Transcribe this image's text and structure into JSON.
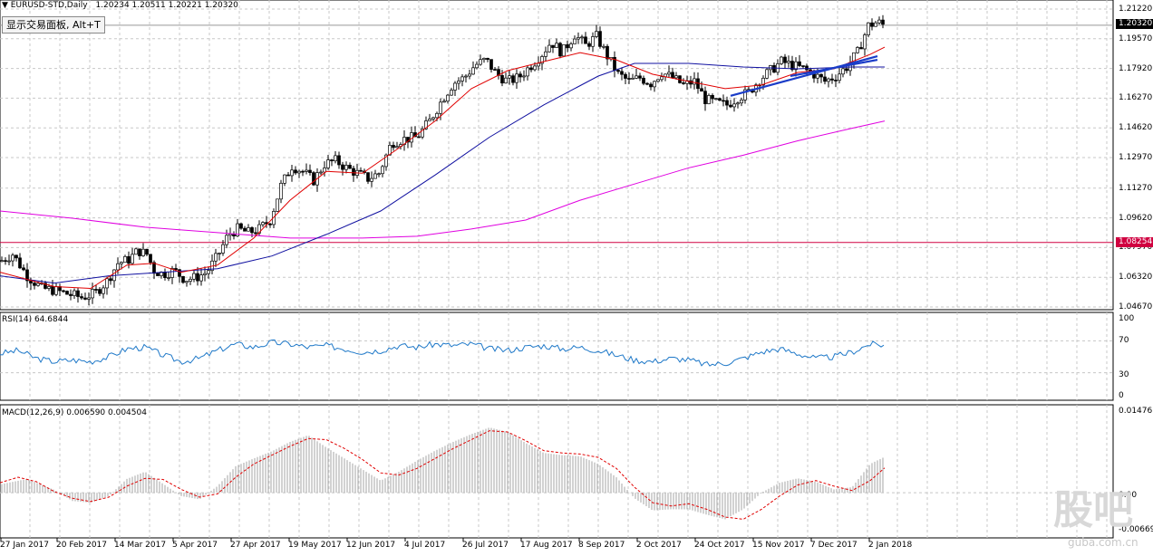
{
  "window": {
    "symbol_title": "EURUSD-STD,Daily",
    "ohlc": "1.20234 1.20511 1.20221 1.20320"
  },
  "tooltip": {
    "label": "显示交易面板, Alt+T"
  },
  "price_axis": {
    "labels": [
      "1.21220",
      "1.19570",
      "1.17920",
      "1.16270",
      "1.14620",
      "1.12970",
      "1.11270",
      "1.09620",
      "1.07970",
      "1.06320",
      "1.04670"
    ],
    "current_price": "1.20320",
    "hline_price": "1.08254"
  },
  "rsi": {
    "title": "RSI(14) 64.6844",
    "levels": [
      "100",
      "70",
      "30",
      "0"
    ]
  },
  "macd": {
    "title": "MACD(12,26,9) 0.006590 0.004504",
    "levels": [
      "0.01476",
      "0.00",
      "-0.006692"
    ]
  },
  "time_axis": {
    "labels": [
      "27 Jan 2017",
      "20 Feb 2017",
      "14 Mar 2017",
      "5 Apr 2017",
      "27 Apr 2017",
      "19 May 2017",
      "12 Jun 2017",
      "4 Jul 2017",
      "26 Jul 2017",
      "17 Aug 2017",
      "8 Sep 2017",
      "2 Oct 2017",
      "24 Oct 2017",
      "15 Nov 2017",
      "7 Dec 2017",
      "2 Jan 2018"
    ]
  },
  "watermark": {
    "text": "股吧",
    "sub": "guba.com.cn"
  },
  "colors": {
    "ma_fast": "#e00000",
    "ma_mid": "#1010a0",
    "ma_slow": "#e000e0",
    "rsi": "#1e78c8",
    "macd_signal": "#e00000",
    "trend": "#1a3cc8",
    "hline": "#d00040"
  },
  "chart_data": [
    {
      "type": "candlestick",
      "title": "EURUSD-STD,Daily",
      "ylim": [
        1.0467,
        1.2122
      ],
      "price_points": [
        [
          0,
          1.072
        ],
        [
          14,
          1.076
        ],
        [
          30,
          1.064
        ],
        [
          46,
          1.057
        ],
        [
          60,
          1.056
        ],
        [
          74,
          1.054
        ],
        [
          90,
          1.052
        ],
        [
          104,
          1.054
        ],
        [
          118,
          1.061
        ],
        [
          130,
          1.071
        ],
        [
          142,
          1.073
        ],
        [
          152,
          1.078
        ],
        [
          162,
          1.076
        ],
        [
          170,
          1.067
        ],
        [
          180,
          1.065
        ],
        [
          192,
          1.067
        ],
        [
          204,
          1.062
        ],
        [
          216,
          1.063
        ],
        [
          228,
          1.066
        ],
        [
          240,
          1.075
        ],
        [
          252,
          1.087
        ],
        [
          262,
          1.09
        ],
        [
          274,
          1.088
        ],
        [
          286,
          1.09
        ],
        [
          298,
          1.095
        ],
        [
          310,
          1.114
        ],
        [
          322,
          1.125
        ],
        [
          334,
          1.122
        ],
        [
          346,
          1.117
        ],
        [
          358,
          1.126
        ],
        [
          370,
          1.128
        ],
        [
          382,
          1.124
        ],
        [
          394,
          1.121
        ],
        [
          406,
          1.118
        ],
        [
          418,
          1.121
        ],
        [
          432,
          1.138
        ],
        [
          446,
          1.14
        ],
        [
          460,
          1.141
        ],
        [
          474,
          1.15
        ],
        [
          488,
          1.162
        ],
        [
          500,
          1.171
        ],
        [
          512,
          1.174
        ],
        [
          524,
          1.181
        ],
        [
          536,
          1.184
        ],
        [
          548,
          1.176
        ],
        [
          560,
          1.172
        ],
        [
          572,
          1.174
        ],
        [
          584,
          1.18
        ],
        [
          596,
          1.186
        ],
        [
          608,
          1.194
        ],
        [
          620,
          1.188
        ],
        [
          634,
          1.198
        ],
        [
          646,
          1.192
        ],
        [
          658,
          1.197
        ],
        [
          670,
          1.186
        ],
        [
          682,
          1.176
        ],
        [
          694,
          1.172
        ],
        [
          706,
          1.174
        ],
        [
          718,
          1.171
        ],
        [
          730,
          1.177
        ],
        [
          742,
          1.174
        ],
        [
          754,
          1.17
        ],
        [
          766,
          1.172
        ],
        [
          778,
          1.162
        ],
        [
          790,
          1.16
        ],
        [
          802,
          1.159
        ],
        [
          814,
          1.163
        ],
        [
          826,
          1.166
        ],
        [
          838,
          1.173
        ],
        [
          850,
          1.178
        ],
        [
          862,
          1.183
        ],
        [
          874,
          1.181
        ],
        [
          886,
          1.179
        ],
        [
          898,
          1.176
        ],
        [
          910,
          1.172
        ],
        [
          922,
          1.175
        ],
        [
          934,
          1.18
        ],
        [
          946,
          1.188
        ],
        [
          958,
          1.203
        ],
        [
          968,
          1.205
        ],
        [
          976,
          1.203
        ]
      ],
      "ma_fast": [
        [
          0,
          1.066
        ],
        [
          60,
          1.058
        ],
        [
          100,
          1.057
        ],
        [
          140,
          1.07
        ],
        [
          170,
          1.071
        ],
        [
          200,
          1.066
        ],
        [
          240,
          1.07
        ],
        [
          280,
          1.085
        ],
        [
          320,
          1.106
        ],
        [
          360,
          1.122
        ],
        [
          400,
          1.121
        ],
        [
          440,
          1.135
        ],
        [
          480,
          1.15
        ],
        [
          520,
          1.168
        ],
        [
          560,
          1.178
        ],
        [
          600,
          1.183
        ],
        [
          640,
          1.188
        ],
        [
          680,
          1.184
        ],
        [
          720,
          1.176
        ],
        [
          760,
          1.172
        ],
        [
          800,
          1.168
        ],
        [
          840,
          1.17
        ],
        [
          880,
          1.177
        ],
        [
          920,
          1.179
        ],
        [
          960,
          1.187
        ],
        [
          976,
          1.191
        ]
      ],
      "ma_mid": [
        [
          0,
          1.064
        ],
        [
          60,
          1.06
        ],
        [
          120,
          1.064
        ],
        [
          180,
          1.066
        ],
        [
          240,
          1.068
        ],
        [
          300,
          1.075
        ],
        [
          360,
          1.087
        ],
        [
          420,
          1.1
        ],
        [
          480,
          1.12
        ],
        [
          540,
          1.141
        ],
        [
          600,
          1.159
        ],
        [
          660,
          1.175
        ],
        [
          700,
          1.182
        ],
        [
          760,
          1.182
        ],
        [
          820,
          1.18
        ],
        [
          880,
          1.179
        ],
        [
          940,
          1.18
        ],
        [
          976,
          1.18
        ]
      ],
      "ma_slow": [
        [
          0,
          1.1
        ],
        [
          80,
          1.096
        ],
        [
          160,
          1.091
        ],
        [
          240,
          1.088
        ],
        [
          320,
          1.085
        ],
        [
          400,
          1.085
        ],
        [
          460,
          1.086
        ],
        [
          520,
          1.09
        ],
        [
          580,
          1.095
        ],
        [
          640,
          1.106
        ],
        [
          700,
          1.115
        ],
        [
          760,
          1.124
        ],
        [
          820,
          1.131
        ],
        [
          880,
          1.139
        ],
        [
          940,
          1.146
        ],
        [
          976,
          1.15
        ]
      ],
      "trend_lines": [
        [
          [
            806,
            1.164
          ],
          [
            968,
            1.186
          ]
        ],
        [
          [
            872,
            1.175
          ],
          [
            968,
            1.184
          ]
        ]
      ],
      "hline": 1.08254
    },
    {
      "type": "line",
      "title": "RSI(14) 64.6844",
      "ylim": [
        0,
        100
      ],
      "values": [
        [
          0,
          54
        ],
        [
          20,
          58
        ],
        [
          40,
          48
        ],
        [
          60,
          44
        ],
        [
          80,
          46
        ],
        [
          100,
          44
        ],
        [
          120,
          50
        ],
        [
          140,
          60
        ],
        [
          160,
          62
        ],
        [
          180,
          52
        ],
        [
          200,
          44
        ],
        [
          220,
          48
        ],
        [
          240,
          58
        ],
        [
          260,
          66
        ],
        [
          280,
          62
        ],
        [
          300,
          68
        ],
        [
          320,
          66
        ],
        [
          340,
          62
        ],
        [
          360,
          64
        ],
        [
          380,
          60
        ],
        [
          400,
          56
        ],
        [
          420,
          58
        ],
        [
          440,
          64
        ],
        [
          460,
          62
        ],
        [
          480,
          66
        ],
        [
          500,
          64
        ],
        [
          520,
          66
        ],
        [
          540,
          60
        ],
        [
          560,
          58
        ],
        [
          580,
          62
        ],
        [
          600,
          64
        ],
        [
          620,
          60
        ],
        [
          640,
          62
        ],
        [
          660,
          58
        ],
        [
          680,
          52
        ],
        [
          700,
          46
        ],
        [
          720,
          44
        ],
        [
          740,
          48
        ],
        [
          760,
          46
        ],
        [
          780,
          40
        ],
        [
          800,
          42
        ],
        [
          820,
          48
        ],
        [
          840,
          56
        ],
        [
          860,
          60
        ],
        [
          880,
          54
        ],
        [
          900,
          48
        ],
        [
          920,
          50
        ],
        [
          940,
          56
        ],
        [
          960,
          66
        ],
        [
          976,
          64.68
        ]
      ]
    },
    {
      "type": "bar",
      "title": "MACD(12,26,9) 0.006590 0.004504",
      "ylim": [
        -0.006692,
        0.01476
      ],
      "histogram": [
        [
          0,
          0.0015
        ],
        [
          30,
          0.0025
        ],
        [
          60,
          0.0005
        ],
        [
          80,
          -0.0015
        ],
        [
          100,
          -0.0018
        ],
        [
          120,
          -0.0006
        ],
        [
          140,
          0.0025
        ],
        [
          160,
          0.0038
        ],
        [
          180,
          0.0016
        ],
        [
          200,
          -0.0006
        ],
        [
          220,
          -0.0012
        ],
        [
          240,
          0.0012
        ],
        [
          260,
          0.0048
        ],
        [
          280,
          0.0062
        ],
        [
          300,
          0.0075
        ],
        [
          320,
          0.0092
        ],
        [
          340,
          0.0104
        ],
        [
          360,
          0.0082
        ],
        [
          380,
          0.0062
        ],
        [
          400,
          0.0042
        ],
        [
          420,
          0.0022
        ],
        [
          440,
          0.0038
        ],
        [
          460,
          0.0058
        ],
        [
          480,
          0.0076
        ],
        [
          500,
          0.0092
        ],
        [
          520,
          0.0106
        ],
        [
          540,
          0.0118
        ],
        [
          560,
          0.011
        ],
        [
          580,
          0.009
        ],
        [
          600,
          0.0072
        ],
        [
          620,
          0.0068
        ],
        [
          640,
          0.0066
        ],
        [
          660,
          0.0052
        ],
        [
          680,
          0.0028
        ],
        [
          700,
          -0.001
        ],
        [
          720,
          -0.0032
        ],
        [
          740,
          -0.003
        ],
        [
          760,
          -0.003
        ],
        [
          780,
          -0.004
        ],
        [
          800,
          -0.0048
        ],
        [
          820,
          -0.003
        ],
        [
          840,
          0.0
        ],
        [
          860,
          0.0018
        ],
        [
          880,
          0.0026
        ],
        [
          900,
          0.002
        ],
        [
          920,
          0.0006
        ],
        [
          940,
          0.001
        ],
        [
          960,
          0.0052
        ],
        [
          976,
          0.0065
        ]
      ],
      "signal": [
        [
          0,
          0.0018
        ],
        [
          20,
          0.0028
        ],
        [
          40,
          0.002
        ],
        [
          60,
          0.0002
        ],
        [
          80,
          -0.001
        ],
        [
          100,
          -0.0016
        ],
        [
          120,
          -0.0008
        ],
        [
          140,
          0.0012
        ],
        [
          160,
          0.0026
        ],
        [
          180,
          0.0024
        ],
        [
          200,
          0.0006
        ],
        [
          220,
          -0.0008
        ],
        [
          240,
          -0.0002
        ],
        [
          260,
          0.0028
        ],
        [
          280,
          0.0052
        ],
        [
          300,
          0.0068
        ],
        [
          320,
          0.0084
        ],
        [
          340,
          0.0098
        ],
        [
          360,
          0.0096
        ],
        [
          380,
          0.008
        ],
        [
          400,
          0.006
        ],
        [
          420,
          0.0036
        ],
        [
          440,
          0.0032
        ],
        [
          460,
          0.0044
        ],
        [
          480,
          0.0062
        ],
        [
          500,
          0.008
        ],
        [
          520,
          0.0096
        ],
        [
          540,
          0.0112
        ],
        [
          560,
          0.011
        ],
        [
          580,
          0.0094
        ],
        [
          600,
          0.0076
        ],
        [
          620,
          0.0072
        ],
        [
          640,
          0.007
        ],
        [
          660,
          0.0064
        ],
        [
          680,
          0.0044
        ],
        [
          700,
          0.001
        ],
        [
          720,
          -0.0018
        ],
        [
          740,
          -0.0024
        ],
        [
          760,
          -0.002
        ],
        [
          780,
          -0.003
        ],
        [
          800,
          -0.0044
        ],
        [
          820,
          -0.0048
        ],
        [
          840,
          -0.003
        ],
        [
          860,
          -0.0006
        ],
        [
          880,
          0.0014
        ],
        [
          900,
          0.0022
        ],
        [
          920,
          0.0012
        ],
        [
          940,
          0.0004
        ],
        [
          960,
          0.0022
        ],
        [
          976,
          0.0045
        ]
      ]
    }
  ]
}
